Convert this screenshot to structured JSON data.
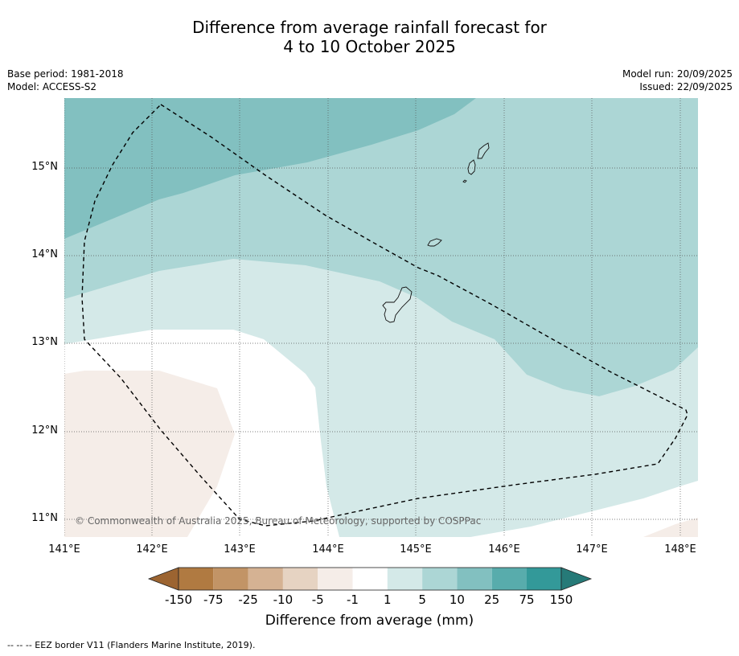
{
  "title": {
    "line1": "Difference from average rainfall forecast for",
    "line2": "4 to 10 October 2025"
  },
  "meta": {
    "base_period": "Base period: 1981-2018",
    "model": "Model: ACCESS-S2",
    "model_run": "Model run: 20/09/2025",
    "issued": "Issued: 22/09/2025"
  },
  "map": {
    "lat_labels": [
      "15°N",
      "14°N",
      "13°N",
      "12°N",
      "11°N"
    ],
    "lon_labels": [
      "141°E",
      "142°E",
      "143°E",
      "144°E",
      "145°E",
      "146°E",
      "147°E",
      "148°E"
    ],
    "copyright": "© Commonwealth of Australia 2025, Bureau of Meteorology, supported by COSPPac"
  },
  "colorbar": {
    "ticks": [
      "-150",
      "-75",
      "-25",
      "-10",
      "-5",
      "-1",
      "1",
      "5",
      "10",
      "25",
      "75",
      "150"
    ],
    "colors": {
      "under": "#9c6431",
      "c1": "#b07a41",
      "c2": "#c29466",
      "c3": "#d5b293",
      "c4": "#e6d3c2",
      "c5": "#f5ede8",
      "c6": "#ffffff",
      "c7": "#d4e9e8",
      "c8": "#acd6d5",
      "c9": "#82c0c0",
      "c10": "#58acac",
      "c11": "#339999",
      "over": "#267a78"
    },
    "label": "Difference from average (mm)"
  },
  "footnote": "--  --  -- EEZ border V11 (Flanders Marine Institute, 2019)."
}
